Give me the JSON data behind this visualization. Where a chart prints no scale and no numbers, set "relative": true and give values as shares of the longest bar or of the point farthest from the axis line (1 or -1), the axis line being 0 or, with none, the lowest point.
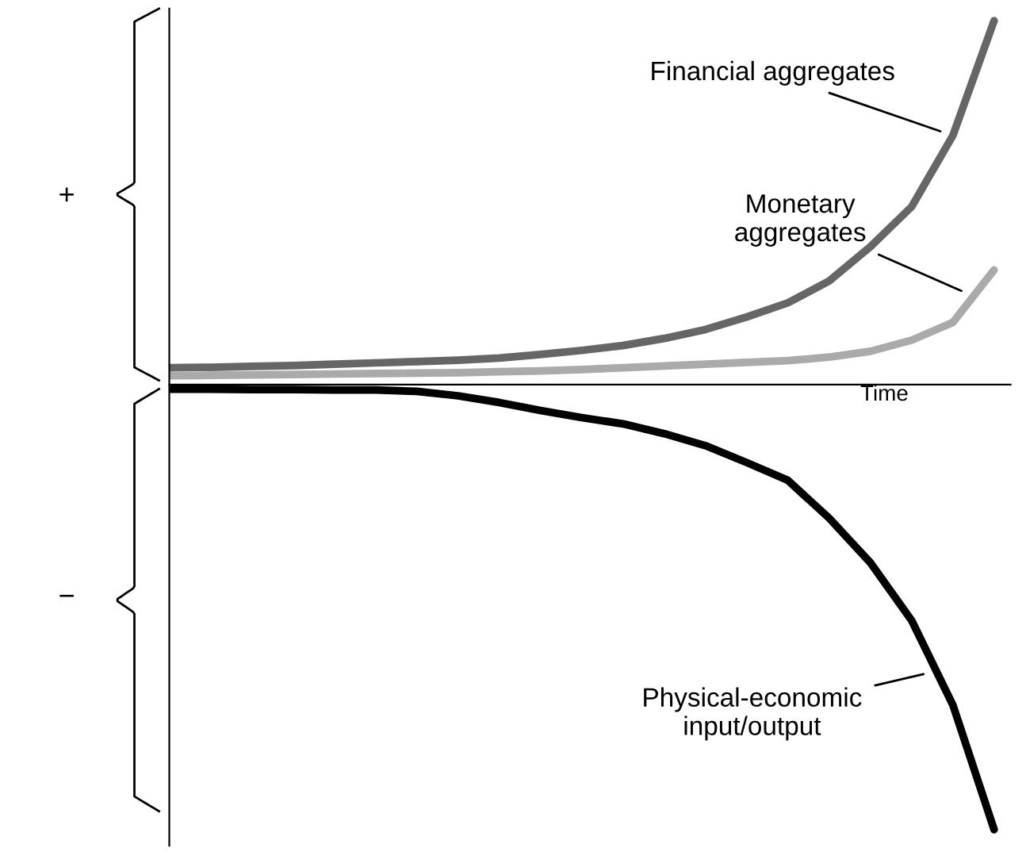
{
  "chart_data": {
    "type": "line",
    "relative": true,
    "xlabel": "Time",
    "marker": "none",
    "line_style": "solid",
    "annotations": [
      "+",
      "−"
    ],
    "categories": [
      null,
      null,
      null,
      null,
      null,
      null,
      null,
      null,
      null,
      null,
      null,
      null,
      null,
      null,
      null,
      null,
      null,
      null,
      null,
      null,
      null
    ],
    "series": [
      {
        "name": "Financial aggregates",
        "color": "#666666",
        "values": [
          0.038,
          0.039,
          0.041,
          0.043,
          0.046,
          0.049,
          0.052,
          0.055,
          0.06,
          0.068,
          0.077,
          0.088,
          0.104,
          0.124,
          0.152,
          0.184,
          0.233,
          0.31,
          0.4,
          0.56,
          0.818
        ]
      },
      {
        "name": "Monetary\naggregates",
        "color": "#aaaaaa",
        "values": [
          0.02,
          0.021,
          0.022,
          0.023,
          0.024,
          0.025,
          0.026,
          0.027,
          0.029,
          0.031,
          0.034,
          0.038,
          0.042,
          0.046,
          0.05,
          0.054,
          0.062,
          0.075,
          0.1,
          0.14,
          0.258
        ]
      },
      {
        "name": "Physical-economic\ninput/output",
        "color": "#000000",
        "values": [
          -0.01,
          -0.01,
          -0.011,
          -0.011,
          -0.012,
          -0.012,
          -0.015,
          -0.025,
          -0.04,
          -0.058,
          -0.074,
          -0.088,
          -0.11,
          -0.137,
          -0.175,
          -0.215,
          -0.3,
          -0.4,
          -0.53,
          -0.72,
          -1.0
        ]
      }
    ]
  }
}
